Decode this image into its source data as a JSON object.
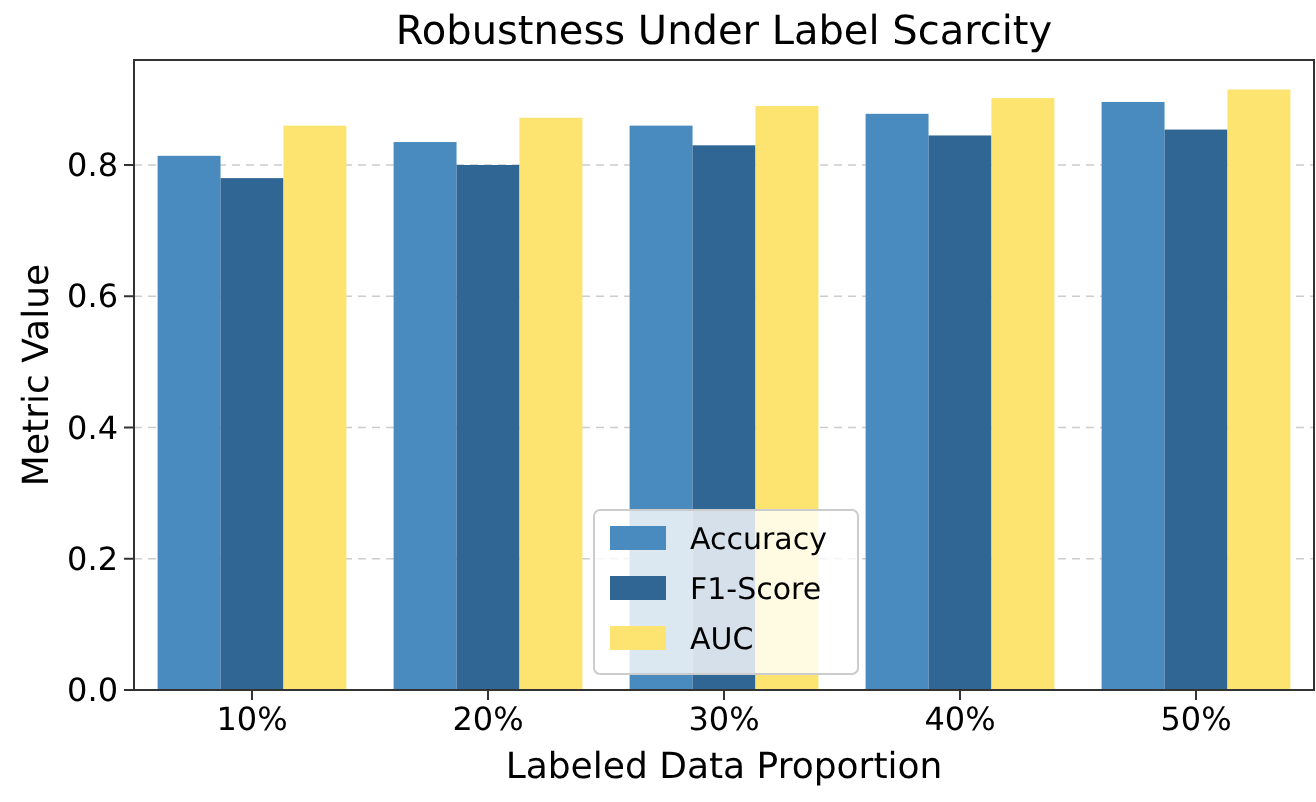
{
  "chart_data": {
    "type": "bar",
    "title": "Robustness Under Label Scarcity",
    "xlabel": "Labeled Data Proportion",
    "ylabel": "Metric Value",
    "categories": [
      "10%",
      "20%",
      "30%",
      "40%",
      "50%"
    ],
    "series": [
      {
        "name": "Accuracy",
        "color": "#4a8bbf",
        "values": [
          0.814,
          0.835,
          0.86,
          0.878,
          0.896
        ]
      },
      {
        "name": "F1-Score",
        "color": "#2f6694",
        "values": [
          0.78,
          0.8,
          0.83,
          0.845,
          0.854
        ]
      },
      {
        "name": "AUC",
        "color": "#fde470",
        "values": [
          0.86,
          0.872,
          0.89,
          0.902,
          0.915
        ]
      }
    ],
    "ylim": [
      0,
      0.96
    ],
    "yticks": [
      {
        "value": 0,
        "label": "0.0"
      },
      0.2,
      0.4,
      0.6,
      0.8
    ],
    "grid": "y",
    "legend": "bottom"
  }
}
